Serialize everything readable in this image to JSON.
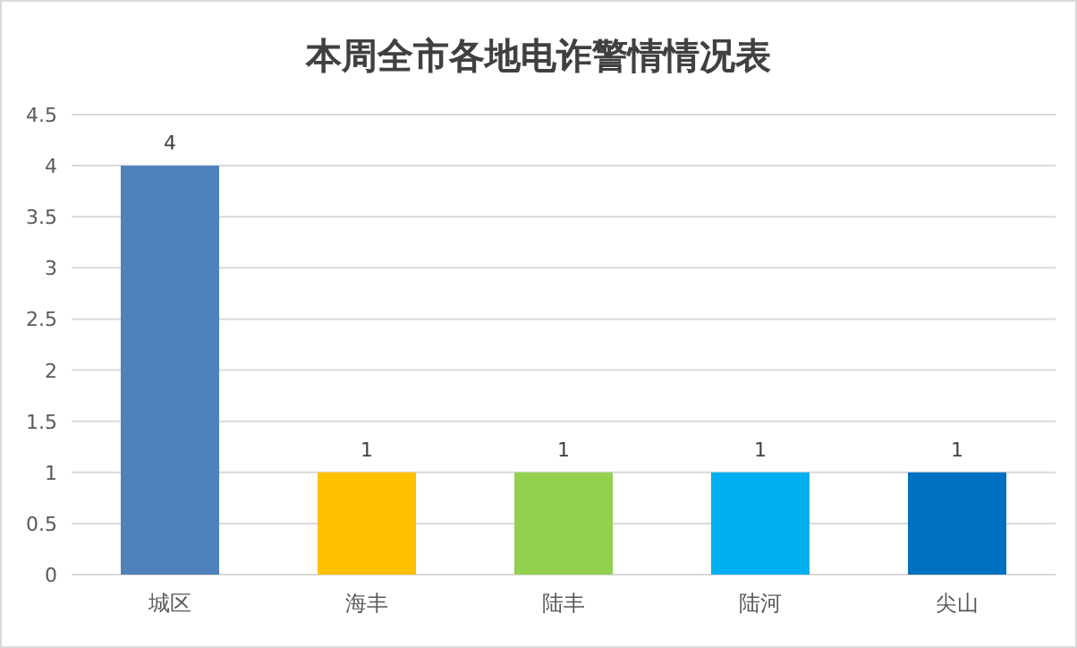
{
  "chart_data": {
    "type": "bar",
    "title": "本周全市各地电诈警情情况表",
    "categories": [
      "城区",
      "海丰",
      "陆丰",
      "陆河",
      "尖山"
    ],
    "values": [
      4,
      1,
      1,
      1,
      1
    ],
    "colors": [
      "#4f81bd",
      "#ffc000",
      "#92d050",
      "#00b0f0",
      "#0070c0"
    ],
    "ylim": [
      0,
      4.5
    ],
    "yticks": [
      0,
      0.5,
      1,
      1.5,
      2,
      2.5,
      3,
      3.5,
      4,
      4.5
    ],
    "grid": "y",
    "data_labels": true
  }
}
